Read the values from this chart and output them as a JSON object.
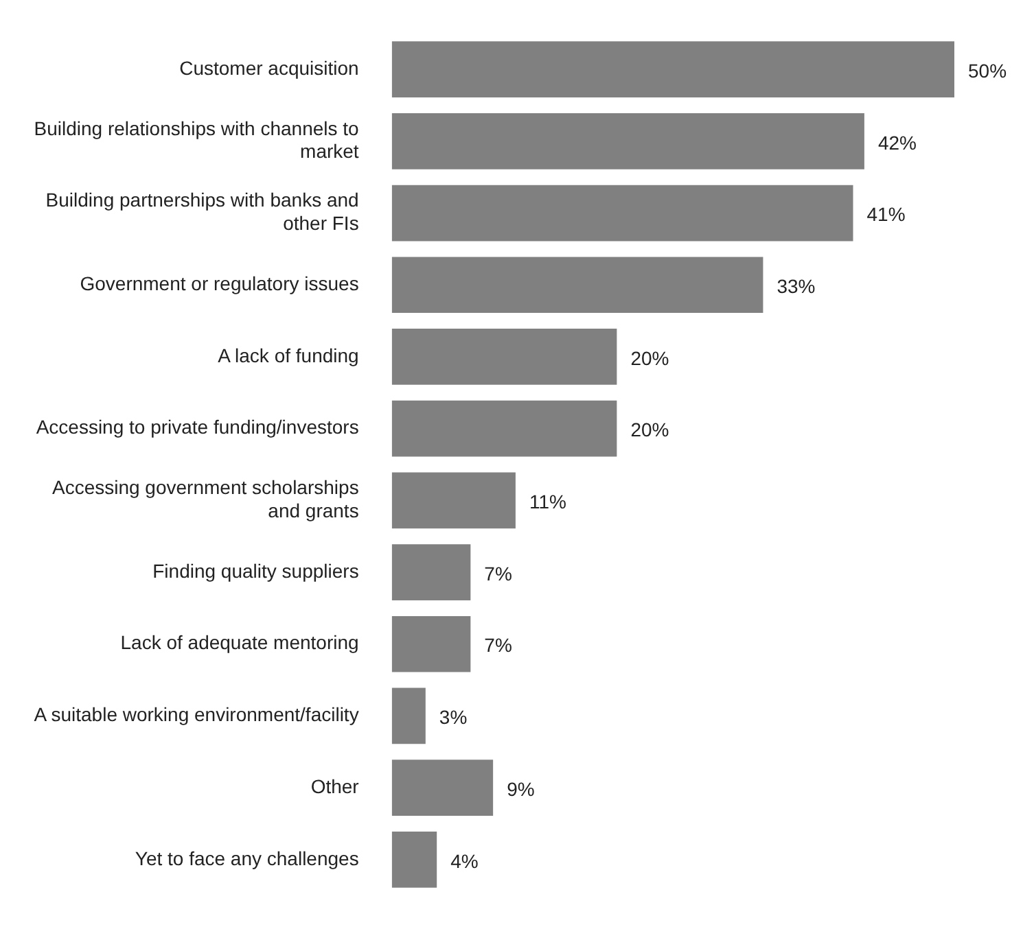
{
  "chart_data": {
    "type": "bar",
    "orientation": "horizontal",
    "categories": [
      "Customer acquisition",
      "Building relationships with channels to market",
      "Building partnerships with banks and other FIs",
      "Government or regulatory issues",
      "A lack of funding",
      "Accessing to private funding/investors",
      "Accessing government scholarships and grants",
      "Finding quality suppliers",
      "Lack of adequate mentoring",
      "A suitable working environment/facility",
      "Other",
      "Yet to face any challenges"
    ],
    "values": [
      50,
      42,
      41,
      33,
      20,
      20,
      11,
      7,
      7,
      3,
      9,
      4
    ],
    "value_labels": [
      "50%",
      "42%",
      "41%",
      "33%",
      "20%",
      "20%",
      "11%",
      "7%",
      "7%",
      "3%",
      "9%",
      "4%"
    ],
    "color": "#808080",
    "legend": false,
    "tick_labels": "y"
  }
}
